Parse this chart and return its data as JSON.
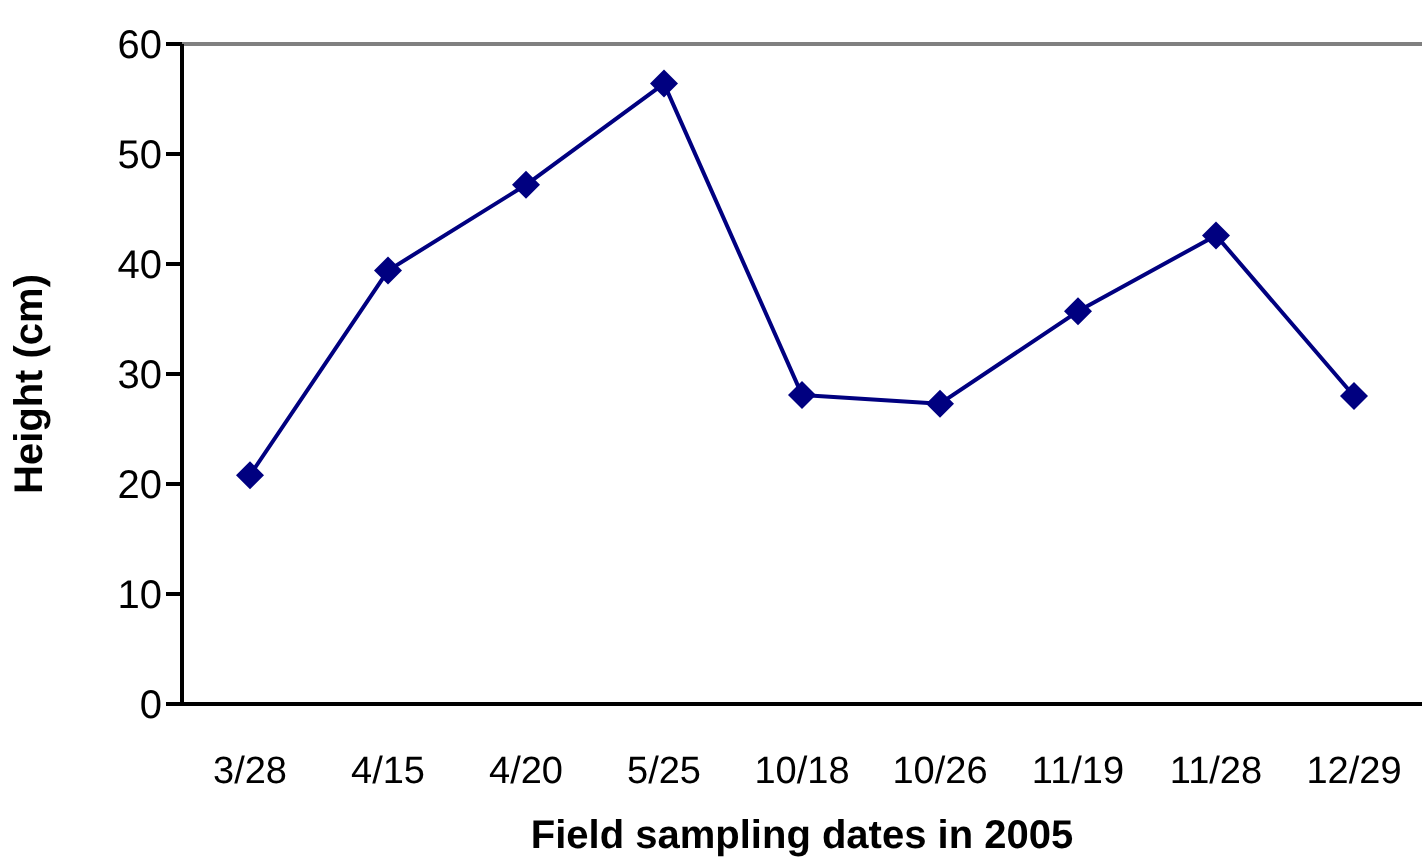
{
  "chart_data": {
    "type": "line",
    "xlabel": "Field sampling dates  in 2005",
    "ylabel": "Height (cm)",
    "categories": [
      "3/28",
      "4/15",
      "4/20",
      "5/25",
      "10/18",
      "10/26",
      "11/19",
      "11/28",
      "12/29"
    ],
    "series": [
      {
        "color": "#000080",
        "values": [
          20.8,
          39.4,
          47.2,
          56.4,
          28.1,
          27.3,
          35.7,
          42.6,
          28.0
        ]
      }
    ],
    "ylim": [
      0,
      60
    ],
    "yticks": [
      0,
      10,
      20,
      30,
      40,
      50,
      60
    ],
    "legend": false,
    "marker": "diamond",
    "line_style": "solid"
  }
}
